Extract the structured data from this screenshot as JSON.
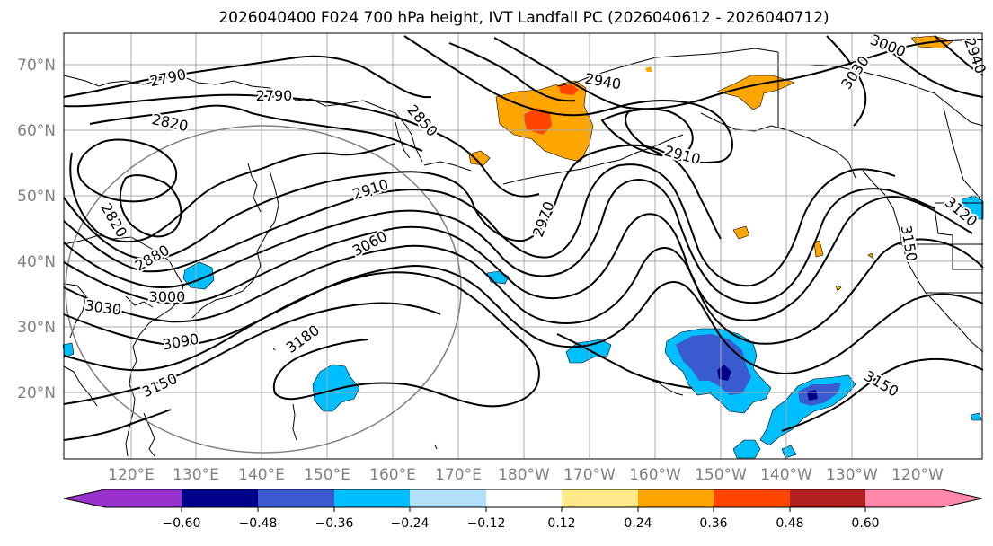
{
  "title": "2026040400 F024 700 hPa height, IVT Landfall PC (2026040612 - 2026040712)",
  "map": {
    "lat_labels": [
      "70°N",
      "60°N",
      "50°N",
      "40°N",
      "30°N",
      "20°N"
    ],
    "lon_labels": [
      "120°E",
      "130°E",
      "140°E",
      "150°E",
      "160°E",
      "170°E",
      "180°W",
      "170°W",
      "160°W",
      "150°W",
      "140°W",
      "130°W",
      "120°W"
    ],
    "contour_labels": [
      "2790",
      "2790",
      "2820",
      "2820",
      "2850",
      "2880",
      "2910",
      "2910",
      "2940",
      "2970",
      "3000",
      "3000",
      "3030",
      "3030",
      "3060",
      "3090",
      "3120",
      "3150",
      "3150",
      "3150",
      "3180",
      "2940"
    ]
  },
  "colorbar": {
    "tick_labels": [
      "−0.60",
      "−0.48",
      "−0.36",
      "−0.24",
      "−0.12",
      "0.12",
      "0.24",
      "0.36",
      "0.48",
      "0.60"
    ],
    "colors": [
      "#9932cc",
      "#00008b",
      "#3a5bcf",
      "#00bfff",
      "#b0e0fa",
      "#ffffff",
      "#ffe98a",
      "#ffa500",
      "#ff4500",
      "#b22222",
      "#ff88aa"
    ]
  }
}
